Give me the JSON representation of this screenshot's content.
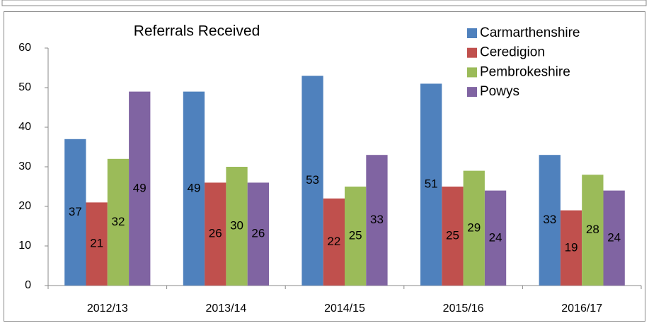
{
  "chart_data": {
    "type": "bar",
    "title": "Referrals Received",
    "categories": [
      "2012/13",
      "2013/14",
      "2014/15",
      "2015/16",
      "2016/17"
    ],
    "series": [
      {
        "name": "Carmarthenshire",
        "color": "#4f81bd",
        "values": [
          37,
          49,
          53,
          51,
          33
        ]
      },
      {
        "name": "Ceredigion",
        "color": "#c0504d",
        "values": [
          21,
          26,
          22,
          25,
          19
        ]
      },
      {
        "name": "Pembrokeshire",
        "color": "#9bbb59",
        "values": [
          32,
          30,
          25,
          29,
          28
        ]
      },
      {
        "name": "Powys",
        "color": "#8064a2",
        "values": [
          49,
          26,
          33,
          24,
          24
        ]
      }
    ],
    "ylim": [
      0,
      60
    ],
    "yticks": [
      0,
      10,
      20,
      30,
      40,
      50,
      60
    ],
    "grid": false,
    "legend": "top-right"
  }
}
